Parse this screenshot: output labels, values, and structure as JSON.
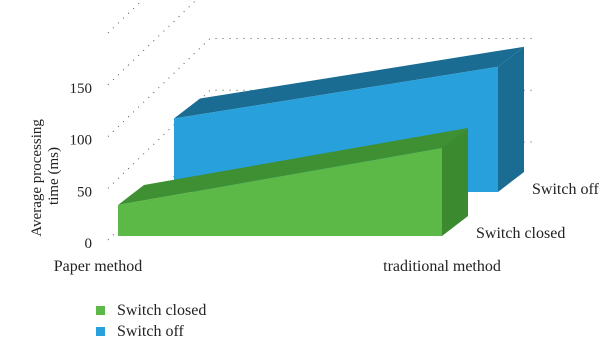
{
  "chart_data": {
    "type": "area",
    "subtype": "3d-area",
    "title": "",
    "xlabel": "",
    "ylabel": "Average processing time (ms)",
    "ylabel_lines": [
      "Average processing",
      "time (ms)"
    ],
    "categories": [
      "Paper method",
      "traditional method"
    ],
    "yticks": [
      0,
      50,
      100,
      150
    ],
    "ylim": [
      0,
      200
    ],
    "grid": "dotted",
    "legend": "bottom-left",
    "series": [
      {
        "name": "Switch closed",
        "values": [
          30,
          85
        ],
        "color": "#5cb947",
        "top_color": "#3f8f33",
        "side_color": "#3c8a30"
      },
      {
        "name": "Switch off",
        "values": [
          71,
          121
        ],
        "color": "#27a0db",
        "top_color": "#1b6c93",
        "side_color": "#1b6c93"
      }
    ]
  }
}
